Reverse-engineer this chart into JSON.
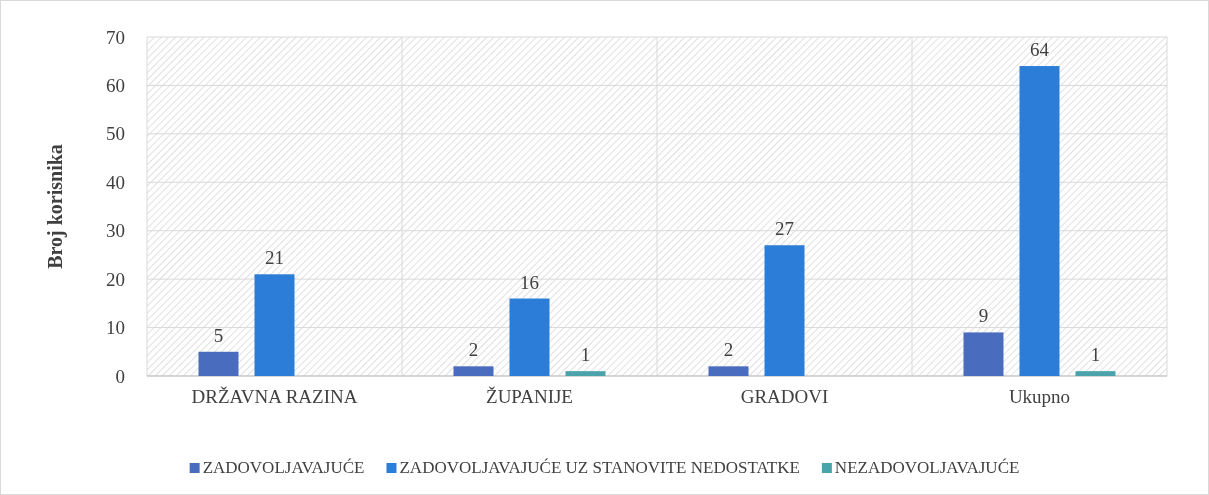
{
  "chart_data": {
    "type": "bar",
    "ylabel": "Broj korisnika",
    "categories": [
      "DRŽAVNA RAZINA",
      "ŽUPANIJE",
      "GRADOVI",
      "Ukupno"
    ],
    "series": [
      {
        "name": "ZADOVOLJAVAJUĆE",
        "color": "#4a6cbf",
        "values": [
          5,
          2,
          2,
          9
        ],
        "value_labels": [
          "5",
          "2",
          "2",
          "9"
        ]
      },
      {
        "name": "ZADOVOLJAVAJUĆE UZ STANOVITE NEDOSTATKE",
        "color": "#2b7dd8",
        "values": [
          21,
          16,
          27,
          64
        ],
        "value_labels": [
          "21",
          "16",
          "27",
          "64"
        ]
      },
      {
        "name": "NEZADOVOLJAVAJUĆE",
        "color": "#4aa3aa",
        "values": [
          0,
          1,
          0,
          1
        ],
        "value_labels": [
          null,
          "1",
          null,
          "1"
        ]
      }
    ],
    "ylim": [
      0,
      70
    ],
    "yticks": [
      0,
      10,
      20,
      30,
      40,
      50,
      60,
      70
    ],
    "grid": true,
    "legend": "bottom"
  }
}
